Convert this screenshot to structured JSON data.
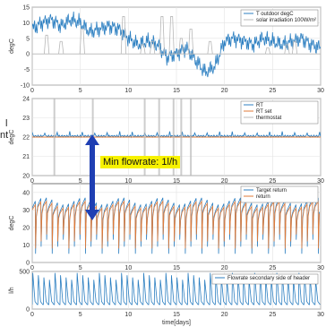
{
  "side_text": {
    "line1": "l",
    "line2": "nt"
  },
  "annotation": {
    "text": "Min flowrate: 1l/h"
  },
  "colors": {
    "blue": "#2c7fc1",
    "orange": "#e07b39",
    "gray": "#b8b8b8",
    "arrow": "#1f3fb3",
    "callout_bg": "#f7f200"
  },
  "chart_data": [
    {
      "type": "line",
      "ylabel": "degC",
      "xlim": [
        0,
        30
      ],
      "ylim": [
        -10,
        15
      ],
      "yticks": [
        -10,
        -5,
        0,
        5,
        10,
        15
      ],
      "xticks": [
        0,
        5,
        10,
        15,
        20,
        25,
        30
      ],
      "legend": {
        "placement": "top-right",
        "entries": [
          "T outdoor degC",
          "solar irradiation 100W/m²"
        ]
      },
      "series": [
        {
          "name": "T outdoor degC",
          "color": "blue",
          "x": [
            0,
            1,
            2,
            3,
            4,
            5,
            6,
            7,
            8,
            9,
            10,
            11,
            12,
            13,
            14,
            15,
            16,
            17,
            18,
            19,
            20,
            21,
            22,
            23,
            24,
            25,
            26,
            27,
            28,
            29,
            30
          ],
          "values": [
            8,
            10,
            11,
            9,
            11,
            10,
            7,
            8,
            9,
            8,
            5,
            3,
            4,
            3,
            -1,
            0,
            2,
            -2,
            -6,
            -4,
            4,
            5,
            4,
            3,
            5,
            4,
            3,
            4,
            5,
            3,
            2
          ]
        },
        {
          "name": "solar irradiation 100W/m²",
          "color": "gray",
          "spikes": [
            {
              "x": 1.5,
              "y": 6
            },
            {
              "x": 3,
              "y": 4
            },
            {
              "x": 5.2,
              "y": 8
            },
            {
              "x": 9.5,
              "y": 12
            },
            {
              "x": 11.5,
              "y": 3
            },
            {
              "x": 12.5,
              "y": 4
            },
            {
              "x": 13.5,
              "y": 12
            },
            {
              "x": 14.5,
              "y": 12
            },
            {
              "x": 15.5,
              "y": 5
            },
            {
              "x": 16.5,
              "y": 8
            },
            {
              "x": 18.5,
              "y": 4
            },
            {
              "x": 24.5,
              "y": 2
            },
            {
              "x": 26.5,
              "y": 3
            },
            {
              "x": 27.3,
              "y": 4
            }
          ]
        }
      ]
    },
    {
      "type": "line",
      "ylabel": "degC",
      "xlim": [
        0,
        30
      ],
      "ylim": [
        20,
        24
      ],
      "yticks": [
        20,
        21,
        22,
        23,
        24
      ],
      "xticks": [
        0,
        5,
        10,
        15,
        20,
        25,
        30
      ],
      "legend": {
        "placement": "top-right",
        "entries": [
          "RT",
          "RT set",
          "thermostat"
        ]
      },
      "series": [
        {
          "name": "RT",
          "color": "blue",
          "value": 22.05
        },
        {
          "name": "RT set",
          "color": "orange",
          "value": 22.0
        },
        {
          "name": "thermostat",
          "color": "gray",
          "spikes_x": [
            2.3,
            6.3,
            11.7,
            13.2,
            14.7,
            15.5,
            16.5
          ]
        }
      ]
    },
    {
      "type": "line",
      "ylabel": "degC",
      "xlim": [
        0,
        30
      ],
      "ylim": [
        0,
        45
      ],
      "yticks": [
        0,
        10,
        20,
        30,
        40
      ],
      "xticks": [
        0,
        5,
        10,
        15,
        20,
        25,
        30
      ],
      "legend": {
        "placement": "top-right",
        "entries": [
          "Target return",
          "return"
        ]
      },
      "series": [
        {
          "name": "Target return",
          "color": "blue",
          "baseline": 31,
          "peak": 35,
          "drop": 5,
          "cycles": 52
        },
        {
          "name": "return",
          "color": "orange",
          "baseline": 30,
          "peak": 33,
          "drop": 8,
          "cycles": 52
        }
      ]
    },
    {
      "type": "line",
      "ylabel": "l/h",
      "xlabel": "time[days]",
      "xlim": [
        0,
        30
      ],
      "ylim": [
        0,
        500
      ],
      "yticks": [
        0,
        500
      ],
      "xticks": [
        0,
        5,
        10,
        15,
        20,
        25,
        30
      ],
      "legend": {
        "placement": "top-right",
        "entries": [
          "Flowrate secondary side of header"
        ]
      },
      "series": [
        {
          "name": "Flowrate secondary side of header",
          "color": "blue",
          "peak": 480,
          "base": 60,
          "cycles": 52
        }
      ]
    }
  ]
}
